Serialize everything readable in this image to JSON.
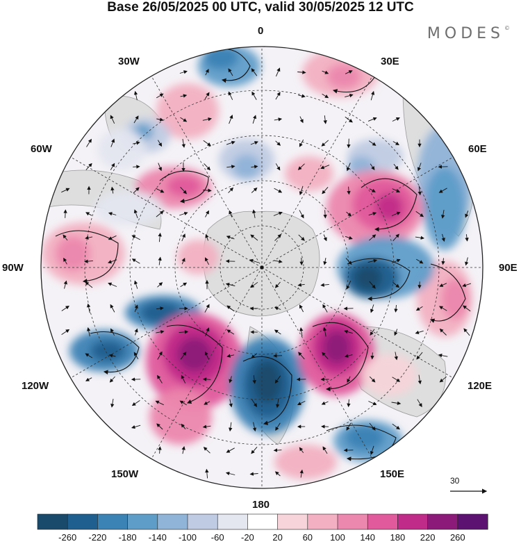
{
  "title": "Base 26/05/2025 00 UTC, valid 30/05/2025 12 UTC",
  "brand": {
    "name": "MODES",
    "mark": "©"
  },
  "longitude_labels": {
    "lon_0": "0",
    "lon_30e": "30E",
    "lon_60e": "60E",
    "lon_90e": "90E",
    "lon_120e": "120E",
    "lon_150e": "150E",
    "lon_180": "180",
    "lon_150w": "150W",
    "lon_120w": "120W",
    "lon_90w": "90W",
    "lon_60w": "60W",
    "lon_30w": "30W"
  },
  "reference_vector": {
    "value": "30"
  },
  "colorbar": {
    "ticks": [
      "-260",
      "-220",
      "-180",
      "-140",
      "-100",
      "-60",
      "-20",
      "20",
      "60",
      "100",
      "140",
      "180",
      "220",
      "260"
    ],
    "colors": [
      "#1a4a6b",
      "#1f5f8f",
      "#3b82b5",
      "#5f9dc9",
      "#90b3d8",
      "#bfcbe3",
      "#e4e6f0",
      "#ffffff",
      "#f7d4d9",
      "#f2b0c2",
      "#ec87ad",
      "#e05a9c",
      "#c02a88",
      "#8c1a78",
      "#5b1271"
    ]
  },
  "map_colors": {
    "land": "#dedede",
    "land_edge": "#9a9a9a",
    "grid": "#333333",
    "vector": "#111111"
  }
}
